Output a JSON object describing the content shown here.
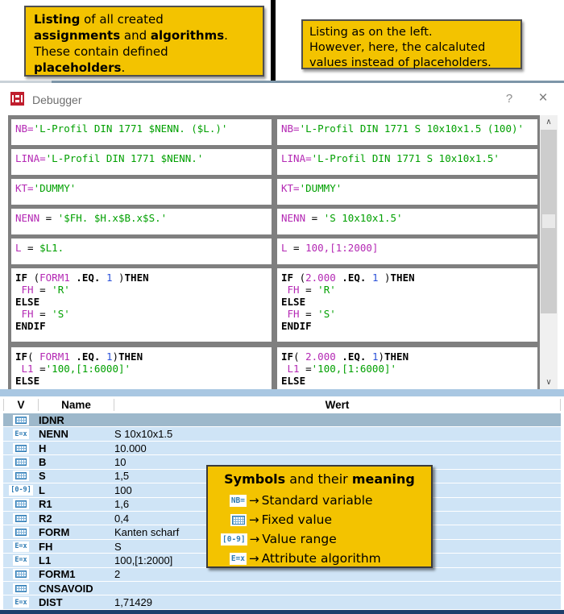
{
  "callout_left": {
    "lines": [
      [
        {
          "t": "Listing",
          "b": true
        },
        {
          "t": " of all created",
          "b": false
        }
      ],
      [
        {
          "t": "assignments",
          "b": true
        },
        {
          "t": " and ",
          "b": false
        },
        {
          "t": "algorithms",
          "b": true
        },
        {
          "t": ".",
          "b": false
        }
      ],
      [
        {
          "t": "These contain defined",
          "b": false
        }
      ],
      [
        {
          "t": "placeholders",
          "b": true
        },
        {
          "t": ".",
          "b": false
        }
      ]
    ]
  },
  "callout_right": {
    "lines": [
      "Listing as on the left.",
      "However, here, the calcaluted",
      "values instead of placeholders."
    ]
  },
  "window": {
    "title": "Debugger",
    "help_label": "?",
    "close_label": "×"
  },
  "listing": {
    "left_rows": [
      {
        "lines": [
          [
            [
              "v",
              "NB="
            ],
            [
              "s",
              "'L-Profil DIN 1771 $NENN. ($L.)'"
            ]
          ]
        ]
      },
      {
        "lines": [
          [
            [
              "v",
              "LINA="
            ],
            [
              "s",
              "'L-Profil DIN 1771 $NENN.'"
            ]
          ]
        ]
      },
      {
        "lines": [
          [
            [
              "v",
              "KT="
            ],
            [
              "s",
              "'DUMMY'"
            ]
          ]
        ]
      },
      {
        "lines": [
          [
            [
              "v",
              "NENN"
            ],
            [
              "p",
              " = "
            ],
            [
              "s",
              "'$FH. $H.x$B.x$S.'"
            ]
          ]
        ]
      },
      {
        "lines": [
          [
            [
              "v",
              "L"
            ],
            [
              "p",
              " = "
            ],
            [
              "s",
              "$L1."
            ]
          ]
        ]
      },
      {
        "lines": [
          [
            [
              "k",
              "IF"
            ],
            [
              "p",
              " ("
            ],
            [
              "v",
              "FORM1"
            ],
            [
              "p",
              " "
            ],
            [
              "k",
              ".EQ."
            ],
            [
              "p",
              " "
            ],
            [
              "n",
              "1"
            ],
            [
              "p",
              " )"
            ],
            [
              "k",
              "THEN"
            ]
          ],
          [
            [
              "p",
              " "
            ],
            [
              "v",
              "FH"
            ],
            [
              "p",
              " = "
            ],
            [
              "s",
              "'R'"
            ]
          ],
          [
            [
              "k",
              "ELSE"
            ]
          ],
          [
            [
              "p",
              " "
            ],
            [
              "v",
              "FH"
            ],
            [
              "p",
              " = "
            ],
            [
              "s",
              "'S'"
            ]
          ],
          [
            [
              "k",
              "ENDIF"
            ]
          ]
        ]
      },
      {
        "lines": [
          [
            [
              "k",
              "IF"
            ],
            [
              "p",
              "( "
            ],
            [
              "v",
              "FORM1"
            ],
            [
              "p",
              " "
            ],
            [
              "k",
              ".EQ."
            ],
            [
              "p",
              " "
            ],
            [
              "n",
              "1"
            ],
            [
              "p",
              ")"
            ],
            [
              "k",
              "THEN"
            ]
          ],
          [
            [
              "p",
              " "
            ],
            [
              "v",
              "L1"
            ],
            [
              "p",
              " ="
            ],
            [
              "s",
              "'100,[1:6000]'"
            ]
          ],
          [
            [
              "k",
              "ELSE"
            ]
          ]
        ]
      }
    ],
    "right_rows": [
      {
        "lines": [
          [
            [
              "v",
              "NB="
            ],
            [
              "s",
              "'L-Profil DIN 1771 S 10x10x1.5 (100)'"
            ]
          ]
        ]
      },
      {
        "lines": [
          [
            [
              "v",
              "LINA="
            ],
            [
              "s",
              "'L-Profil DIN 1771 S 10x10x1.5'"
            ]
          ]
        ]
      },
      {
        "lines": [
          [
            [
              "v",
              "KT="
            ],
            [
              "s",
              "'DUMMY'"
            ]
          ]
        ]
      },
      {
        "lines": [
          [
            [
              "v",
              "NENN"
            ],
            [
              "p",
              " = "
            ],
            [
              "s",
              "'S 10x10x1.5'"
            ]
          ]
        ]
      },
      {
        "lines": [
          [
            [
              "v",
              "L"
            ],
            [
              "p",
              " = "
            ],
            [
              "v",
              "100,[1:2000]"
            ]
          ]
        ]
      },
      {
        "lines": [
          [
            [
              "k",
              "IF"
            ],
            [
              "p",
              " ("
            ],
            [
              "v",
              "2.000"
            ],
            [
              "p",
              " "
            ],
            [
              "k",
              ".EQ."
            ],
            [
              "p",
              " "
            ],
            [
              "n",
              "1"
            ],
            [
              "p",
              " )"
            ],
            [
              "k",
              "THEN"
            ]
          ],
          [
            [
              "p",
              " "
            ],
            [
              "v",
              "FH"
            ],
            [
              "p",
              " = "
            ],
            [
              "s",
              "'R'"
            ]
          ],
          [
            [
              "k",
              "ELSE"
            ]
          ],
          [
            [
              "p",
              " "
            ],
            [
              "v",
              "FH"
            ],
            [
              "p",
              " = "
            ],
            [
              "s",
              "'S'"
            ]
          ],
          [
            [
              "k",
              "ENDIF"
            ]
          ]
        ]
      },
      {
        "lines": [
          [
            [
              "k",
              "IF"
            ],
            [
              "p",
              "( "
            ],
            [
              "v",
              "2.000"
            ],
            [
              "p",
              " "
            ],
            [
              "k",
              ".EQ."
            ],
            [
              "p",
              " "
            ],
            [
              "n",
              "1"
            ],
            [
              "p",
              ")"
            ],
            [
              "k",
              "THEN"
            ]
          ],
          [
            [
              "p",
              " "
            ],
            [
              "v",
              "L1"
            ],
            [
              "p",
              " ="
            ],
            [
              "s",
              "'100,[1:6000]'"
            ]
          ],
          [
            [
              "k",
              "ELSE"
            ]
          ]
        ]
      }
    ]
  },
  "table": {
    "headers": [
      "V",
      "Name",
      "Wert"
    ],
    "rows": [
      {
        "icon": "fixed",
        "name": "IDNR",
        "value": "",
        "selected": true
      },
      {
        "icon": "ex",
        "name": "NENN",
        "value": "S 10x10x1.5",
        "selected": false
      },
      {
        "icon": "fixed",
        "name": "H",
        "value": "10.000",
        "selected": false
      },
      {
        "icon": "fixed",
        "name": "B",
        "value": "10",
        "selected": false
      },
      {
        "icon": "fixed",
        "name": "S",
        "value": "1,5",
        "selected": false
      },
      {
        "icon": "range",
        "name": "L",
        "value": "100",
        "selected": false
      },
      {
        "icon": "fixed",
        "name": "R1",
        "value": "1,6",
        "selected": false
      },
      {
        "icon": "fixed",
        "name": "R2",
        "value": "0,4",
        "selected": false
      },
      {
        "icon": "fixed",
        "name": "FORM",
        "value": "Kanten scharf",
        "selected": false
      },
      {
        "icon": "ex",
        "name": "FH",
        "value": "S",
        "selected": false
      },
      {
        "icon": "ex",
        "name": "L1",
        "value": "100,[1:2000]",
        "selected": false
      },
      {
        "icon": "fixed",
        "name": "FORM1",
        "value": "2",
        "selected": false
      },
      {
        "icon": "fixed",
        "name": "CNSAVOID",
        "value": "",
        "selected": false
      },
      {
        "icon": "ex",
        "name": "DIST",
        "value": "1,71429",
        "selected": false
      }
    ]
  },
  "legend": {
    "title_segments": [
      {
        "t": "Symbols",
        "b": true
      },
      {
        "t": " and their ",
        "b": false
      },
      {
        "t": "meaning",
        "b": true
      }
    ],
    "items": [
      {
        "icon": "nb",
        "label": "Standard variable"
      },
      {
        "icon": "fixed",
        "label": "Fixed value"
      },
      {
        "icon": "range",
        "label": "Value range"
      },
      {
        "icon": "ex",
        "label": "Attribute algorithm"
      }
    ]
  },
  "icons": {
    "nb": "NB=",
    "ex": "E=x",
    "range": "[0-9]",
    "arrow": "→",
    "scroll_up": "∧",
    "scroll_down": "∨"
  },
  "colors": {
    "accent_yellow": "#f3c300",
    "code_variable": "#b429b4",
    "code_string": "#00a000",
    "code_number": "#2a50d8",
    "row_blue": "#cfe4f6",
    "selected_row": "#9db8cb",
    "icon_blue": "#2e7bb4",
    "navy_bar": "#1d3e6b"
  }
}
